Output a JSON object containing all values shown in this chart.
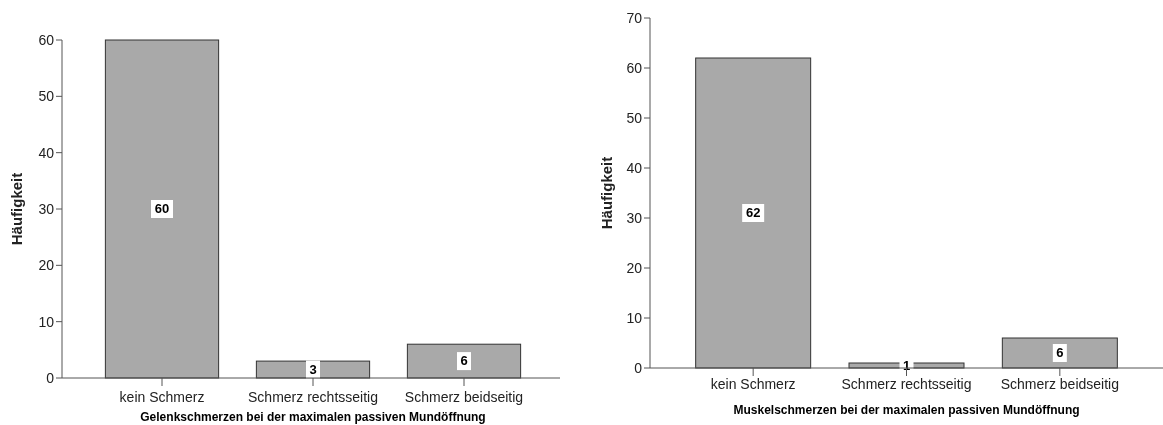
{
  "chart_data": [
    {
      "type": "bar",
      "xlabel": "Gelenkschmerzen bei der maximalen passiven Mundöffnung",
      "ylabel": "Häufigkeit",
      "categories": [
        "kein Schmerz",
        "Schmerz rechtsseitig",
        "Schmerz beidseitig"
      ],
      "values": [
        60,
        3,
        6
      ],
      "color": "#a9a9a9",
      "ylim": [
        0,
        60
      ],
      "yticks": [
        0,
        10,
        20,
        30,
        40,
        50,
        60
      ],
      "data_labels": true
    },
    {
      "type": "bar",
      "xlabel": "Muskelschmerzen bei der maximalen passiven Mundöffnung",
      "ylabel": "Häufigkeit",
      "categories": [
        "kein Schmerz",
        "Schmerz rechtsseitig",
        "Schmerz beidseitig"
      ],
      "values": [
        62,
        1,
        6
      ],
      "color": "#a9a9a9",
      "ylim": [
        0,
        70
      ],
      "yticks": [
        0,
        10,
        20,
        30,
        40,
        50,
        60,
        70
      ],
      "data_labels": true
    }
  ]
}
